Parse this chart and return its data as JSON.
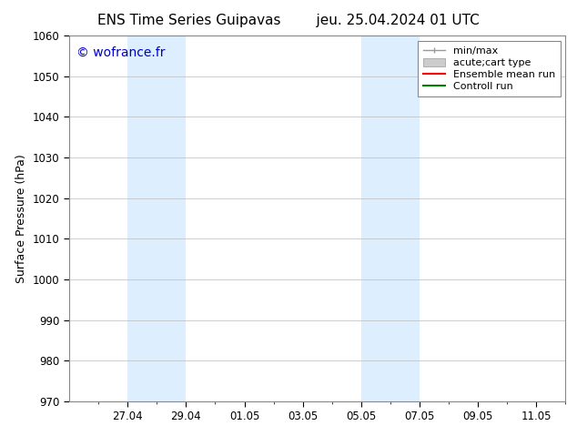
{
  "title_left": "ENS Time Series Guipavas",
  "title_right": "jeu. 25.04.2024 01 UTC",
  "ylabel": "Surface Pressure (hPa)",
  "ylim": [
    970,
    1060
  ],
  "yticks": [
    970,
    980,
    990,
    1000,
    1010,
    1020,
    1030,
    1040,
    1050,
    1060
  ],
  "xtick_labels": [
    "27.04",
    "29.04",
    "01.05",
    "03.05",
    "05.05",
    "07.05",
    "09.05",
    "11.05"
  ],
  "xtick_positions": [
    2,
    4,
    6,
    8,
    10,
    12,
    14,
    16
  ],
  "x_minor_positions": [
    1,
    2,
    3,
    4,
    5,
    6,
    7,
    8,
    9,
    10,
    11,
    12,
    13,
    14,
    15,
    16,
    17
  ],
  "xlim": [
    0,
    16
  ],
  "watermark": "© wofrance.fr",
  "watermark_color": "#0000cc",
  "shaded_regions": [
    {
      "xmin": 2,
      "xmax": 4,
      "color": "#ddeeff"
    },
    {
      "xmin": 10,
      "xmax": 12,
      "color": "#ddeeff"
    }
  ],
  "legend_labels": [
    "min/max",
    "acute;cart type",
    "Ensemble mean run",
    "Controll run"
  ],
  "legend_colors_line": [
    "#999999",
    "#bbbbbb",
    "#ff0000",
    "#008000"
  ],
  "bg_color": "#ffffff",
  "grid_color": "#bbbbbb",
  "spine_color": "#888888",
  "title_fontsize": 11,
  "label_fontsize": 9,
  "tick_fontsize": 8.5,
  "legend_fontsize": 8,
  "watermark_fontsize": 10
}
